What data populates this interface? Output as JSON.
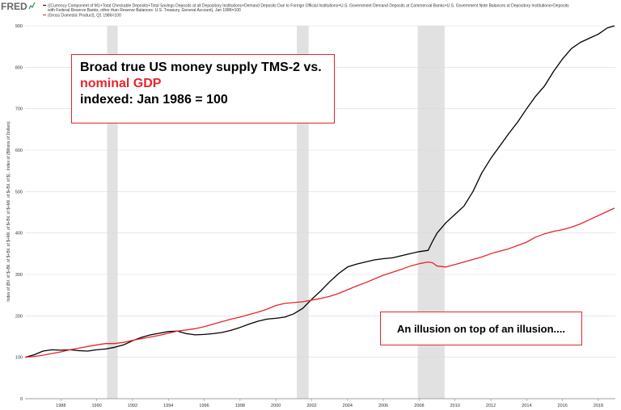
{
  "header": {
    "logo_text": "FRED",
    "legend": [
      {
        "name_lines": [
          "((Currency Component of M1+Total Checkable Deposits+Total Savings Deposits at all Depository Institutions+Demand Deposits Due to Foreign Official Institutions+U.S. Government Demand Deposits at Commercial Banks+U.S. Government Note Balances at Depository Institutions+Deposits",
          "with Federal Reserve Banks, other than Reserve Balances: U.S. Treasury, General Account), Jan 1986=100"
        ],
        "color": "#000000"
      },
      {
        "name_lines": [
          "(Gross Domestic Product), Q1 1986=100"
        ],
        "color": "#e8242a"
      }
    ]
  },
  "callouts": {
    "main_line1": "Broad true US money supply TMS-2 vs.",
    "main_line2": "nominal GDP",
    "main_line3": "indexed: Jan 1986 = 100",
    "sub": "An illusion on top of an illusion...."
  },
  "chart_data": {
    "type": "line",
    "title": "",
    "xlabel": "",
    "ylabel": "Index of (Bil. of $+Bil. of $+Bil. of $+Mil. of $+Bil. of $+Mil. of $+Bil. of $) , Index of (Billions of Dollars)",
    "xlim": [
      1986.0,
      2018.95
    ],
    "ylim": [
      0,
      900
    ],
    "x_ticks": [
      1988,
      1990,
      1992,
      1994,
      1996,
      1998,
      2000,
      2002,
      2004,
      2006,
      2008,
      2010,
      2012,
      2014,
      2016,
      2018
    ],
    "y_ticks": [
      0,
      100,
      200,
      300,
      400,
      500,
      600,
      700,
      800,
      900
    ],
    "grid": "horizontal",
    "recessions": [
      [
        1990.58,
        1991.17
      ],
      [
        2001.17,
        2001.83
      ],
      [
        2007.92,
        2009.42
      ]
    ],
    "series": [
      {
        "name": "((Currency Component of M1+Total Checkable Deposits+Total Savings Deposits at all Depository Institutions+Demand Deposits Due to Foreign Official Institutions+U.S. Government Demand Deposits at Commercial Banks+U.S. Government Note Balances at Depository Institutions+Deposits with Federal Reserve Banks, other than Reserve Balances: U.S. Treasury, General Account), Jan 1986=100",
        "color": "#000000",
        "points": [
          [
            1986.0,
            100
          ],
          [
            1986.5,
            106
          ],
          [
            1987.0,
            115
          ],
          [
            1987.5,
            118
          ],
          [
            1988.0,
            117
          ],
          [
            1988.5,
            118
          ],
          [
            1989.0,
            116
          ],
          [
            1989.5,
            115
          ],
          [
            1990.0,
            118
          ],
          [
            1990.5,
            120
          ],
          [
            1991.0,
            124
          ],
          [
            1991.5,
            130
          ],
          [
            1992.0,
            140
          ],
          [
            1992.5,
            148
          ],
          [
            1993.0,
            154
          ],
          [
            1993.5,
            158
          ],
          [
            1994.0,
            162
          ],
          [
            1994.5,
            163
          ],
          [
            1995.0,
            157
          ],
          [
            1995.5,
            154
          ],
          [
            1996.0,
            155
          ],
          [
            1996.5,
            157
          ],
          [
            1997.0,
            160
          ],
          [
            1997.5,
            165
          ],
          [
            1998.0,
            172
          ],
          [
            1998.5,
            180
          ],
          [
            1999.0,
            187
          ],
          [
            1999.5,
            192
          ],
          [
            2000.0,
            194
          ],
          [
            2000.5,
            197
          ],
          [
            2001.0,
            205
          ],
          [
            2001.5,
            218
          ],
          [
            2002.0,
            240
          ],
          [
            2002.5,
            260
          ],
          [
            2003.0,
            282
          ],
          [
            2003.5,
            302
          ],
          [
            2004.0,
            318
          ],
          [
            2004.5,
            325
          ],
          [
            2005.0,
            330
          ],
          [
            2005.5,
            335
          ],
          [
            2006.0,
            338
          ],
          [
            2006.5,
            340
          ],
          [
            2007.0,
            345
          ],
          [
            2007.5,
            350
          ],
          [
            2008.0,
            355
          ],
          [
            2008.5,
            358
          ],
          [
            2008.75,
            380
          ],
          [
            2009.0,
            400
          ],
          [
            2009.5,
            425
          ],
          [
            2010.0,
            445
          ],
          [
            2010.5,
            465
          ],
          [
            2011.0,
            500
          ],
          [
            2011.5,
            545
          ],
          [
            2012.0,
            580
          ],
          [
            2012.5,
            610
          ],
          [
            2013.0,
            640
          ],
          [
            2013.5,
            668
          ],
          [
            2014.0,
            700
          ],
          [
            2014.5,
            730
          ],
          [
            2015.0,
            755
          ],
          [
            2015.5,
            790
          ],
          [
            2016.0,
            820
          ],
          [
            2016.5,
            845
          ],
          [
            2017.0,
            860
          ],
          [
            2017.5,
            870
          ],
          [
            2018.0,
            880
          ],
          [
            2018.5,
            895
          ],
          [
            2018.9,
            900
          ]
        ]
      },
      {
        "name": "(Gross Domestic Product), Q1 1986=100",
        "color": "#e8242a",
        "points": [
          [
            1986.0,
            100
          ],
          [
            1986.5,
            102
          ],
          [
            1987.0,
            105
          ],
          [
            1987.5,
            109
          ],
          [
            1988.0,
            113
          ],
          [
            1988.5,
            118
          ],
          [
            1989.0,
            122
          ],
          [
            1989.5,
            126
          ],
          [
            1990.0,
            130
          ],
          [
            1990.5,
            133
          ],
          [
            1991.0,
            133
          ],
          [
            1991.5,
            136
          ],
          [
            1992.0,
            141
          ],
          [
            1992.5,
            145
          ],
          [
            1993.0,
            149
          ],
          [
            1993.5,
            153
          ],
          [
            1994.0,
            158
          ],
          [
            1994.5,
            163
          ],
          [
            1995.0,
            166
          ],
          [
            1995.5,
            169
          ],
          [
            1996.0,
            174
          ],
          [
            1996.5,
            180
          ],
          [
            1997.0,
            186
          ],
          [
            1997.5,
            192
          ],
          [
            1998.0,
            197
          ],
          [
            1998.5,
            203
          ],
          [
            1999.0,
            209
          ],
          [
            1999.5,
            216
          ],
          [
            2000.0,
            225
          ],
          [
            2000.5,
            230
          ],
          [
            2001.0,
            232
          ],
          [
            2001.5,
            234
          ],
          [
            2002.0,
            238
          ],
          [
            2002.5,
            242
          ],
          [
            2003.0,
            247
          ],
          [
            2003.5,
            254
          ],
          [
            2004.0,
            263
          ],
          [
            2004.5,
            272
          ],
          [
            2005.0,
            280
          ],
          [
            2005.5,
            289
          ],
          [
            2006.0,
            298
          ],
          [
            2006.5,
            305
          ],
          [
            2007.0,
            312
          ],
          [
            2007.5,
            320
          ],
          [
            2008.0,
            326
          ],
          [
            2008.5,
            330
          ],
          [
            2008.75,
            328
          ],
          [
            2009.0,
            320
          ],
          [
            2009.5,
            318
          ],
          [
            2010.0,
            324
          ],
          [
            2010.5,
            330
          ],
          [
            2011.0,
            336
          ],
          [
            2011.5,
            342
          ],
          [
            2012.0,
            350
          ],
          [
            2012.5,
            356
          ],
          [
            2013.0,
            362
          ],
          [
            2013.5,
            370
          ],
          [
            2014.0,
            378
          ],
          [
            2014.5,
            390
          ],
          [
            2015.0,
            398
          ],
          [
            2015.5,
            404
          ],
          [
            2016.0,
            408
          ],
          [
            2016.5,
            414
          ],
          [
            2017.0,
            422
          ],
          [
            2017.5,
            432
          ],
          [
            2018.0,
            442
          ],
          [
            2018.5,
            452
          ],
          [
            2018.9,
            460
          ]
        ]
      }
    ]
  }
}
